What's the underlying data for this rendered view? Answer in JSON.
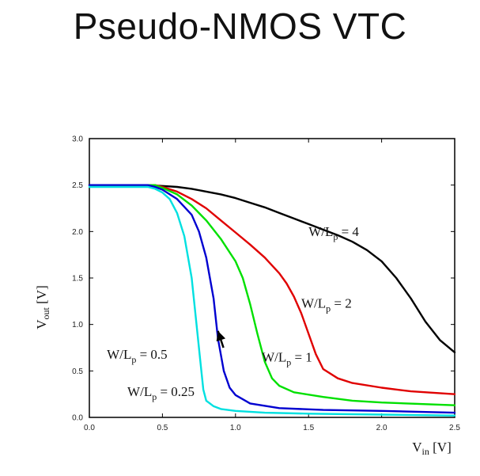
{
  "slide": {
    "title": "Pseudo-NMOS VTC"
  },
  "chart_data": {
    "type": "line",
    "xlim": [
      0,
      2.5
    ],
    "ylim": [
      0,
      3.0
    ],
    "x_ticks": [
      0.0,
      0.5,
      1.0,
      1.5,
      2.0,
      2.5
    ],
    "x_tick_labels": [
      "0.0",
      "0.5",
      "1.0",
      "1.5",
      "2.0",
      "2.5"
    ],
    "y_ticks": [
      0.0,
      0.5,
      1.0,
      1.5,
      2.0,
      2.5,
      3.0
    ],
    "y_tick_labels": [
      "0.0",
      "0.5",
      "1.0",
      "1.5",
      "2.0",
      "2.5",
      "3.0"
    ],
    "xlabel": {
      "main": "V",
      "sub": "in",
      "unit": " [V]"
    },
    "ylabel": {
      "main": "V",
      "sub": "out",
      "unit": "  [V]"
    },
    "grid": false,
    "series": [
      {
        "name": "W/Lp = 4",
        "color": "#000000",
        "x": [
          0,
          0.4,
          0.5,
          0.6,
          0.7,
          0.8,
          0.9,
          1.0,
          1.1,
          1.2,
          1.3,
          1.4,
          1.5,
          1.6,
          1.7,
          1.8,
          1.9,
          2.0,
          2.1,
          2.2,
          2.3,
          2.4,
          2.5
        ],
        "y": [
          2.5,
          2.5,
          2.49,
          2.48,
          2.46,
          2.43,
          2.4,
          2.36,
          2.31,
          2.26,
          2.2,
          2.14,
          2.08,
          2.02,
          1.96,
          1.89,
          1.8,
          1.68,
          1.5,
          1.28,
          1.03,
          0.83,
          0.7
        ]
      },
      {
        "name": "W/Lp = 2",
        "color": "#e00000",
        "x": [
          0,
          0.45,
          0.5,
          0.6,
          0.7,
          0.8,
          0.9,
          1.0,
          1.1,
          1.2,
          1.3,
          1.35,
          1.4,
          1.45,
          1.5,
          1.55,
          1.6,
          1.7,
          1.8,
          2.0,
          2.2,
          2.5
        ],
        "y": [
          2.5,
          2.5,
          2.48,
          2.43,
          2.35,
          2.25,
          2.12,
          1.99,
          1.86,
          1.72,
          1.55,
          1.44,
          1.3,
          1.12,
          0.9,
          0.68,
          0.52,
          0.42,
          0.37,
          0.32,
          0.28,
          0.25
        ]
      },
      {
        "name": "W/Lp = 1",
        "color": "#00e000",
        "x": [
          0,
          0.45,
          0.5,
          0.6,
          0.7,
          0.8,
          0.9,
          1.0,
          1.05,
          1.1,
          1.15,
          1.2,
          1.25,
          1.3,
          1.4,
          1.6,
          1.8,
          2.0,
          2.5
        ],
        "y": [
          2.5,
          2.5,
          2.47,
          2.4,
          2.28,
          2.12,
          1.92,
          1.68,
          1.5,
          1.22,
          0.9,
          0.6,
          0.42,
          0.34,
          0.27,
          0.22,
          0.18,
          0.16,
          0.13
        ]
      },
      {
        "name": "W/Lp = 0.5",
        "color": "#0000d0",
        "x": [
          0,
          0.4,
          0.45,
          0.5,
          0.6,
          0.7,
          0.75,
          0.8,
          0.85,
          0.88,
          0.92,
          0.96,
          1.0,
          1.1,
          1.3,
          1.6,
          2.0,
          2.5
        ],
        "y": [
          2.5,
          2.5,
          2.48,
          2.45,
          2.35,
          2.18,
          2.0,
          1.72,
          1.28,
          0.85,
          0.5,
          0.32,
          0.24,
          0.15,
          0.1,
          0.08,
          0.07,
          0.05
        ]
      },
      {
        "name": "W/Lp = 0.25",
        "color": "#00e0e0",
        "x": [
          0,
          0.4,
          0.45,
          0.5,
          0.55,
          0.6,
          0.65,
          0.7,
          0.73,
          0.76,
          0.78,
          0.8,
          0.85,
          0.9,
          1.0,
          1.2,
          1.5,
          2.0,
          2.5
        ],
        "y": [
          2.48,
          2.48,
          2.46,
          2.42,
          2.35,
          2.2,
          1.95,
          1.5,
          1.05,
          0.6,
          0.3,
          0.18,
          0.12,
          0.09,
          0.07,
          0.05,
          0.04,
          0.03,
          0.02
        ]
      }
    ],
    "annotations": [
      {
        "main": "W/L",
        "sub": "p",
        "rest": " = 4",
        "x": 1.5,
        "y": 1.95,
        "series": "W/Lp = 4"
      },
      {
        "main": "W/L",
        "sub": "p",
        "rest": " = 2",
        "x": 1.45,
        "y": 1.18,
        "series": "W/Lp = 2"
      },
      {
        "main": "W/L",
        "sub": "p",
        "rest": " = 1",
        "x": 1.18,
        "y": 0.6,
        "series": "W/Lp = 1"
      },
      {
        "main": "W/L",
        "sub": "p",
        "rest": " = 0.5",
        "x": 0.12,
        "y": 0.63,
        "series": "W/Lp = 0.5"
      },
      {
        "main": "W/L",
        "sub": "p",
        "rest": " = 0.25",
        "x": 0.26,
        "y": 0.23,
        "series": "W/Lp = 0.25"
      }
    ],
    "arrow": {
      "from": [
        0.62,
        0.75
      ],
      "to": [
        0.88,
        0.93
      ],
      "color": "#000000"
    }
  }
}
